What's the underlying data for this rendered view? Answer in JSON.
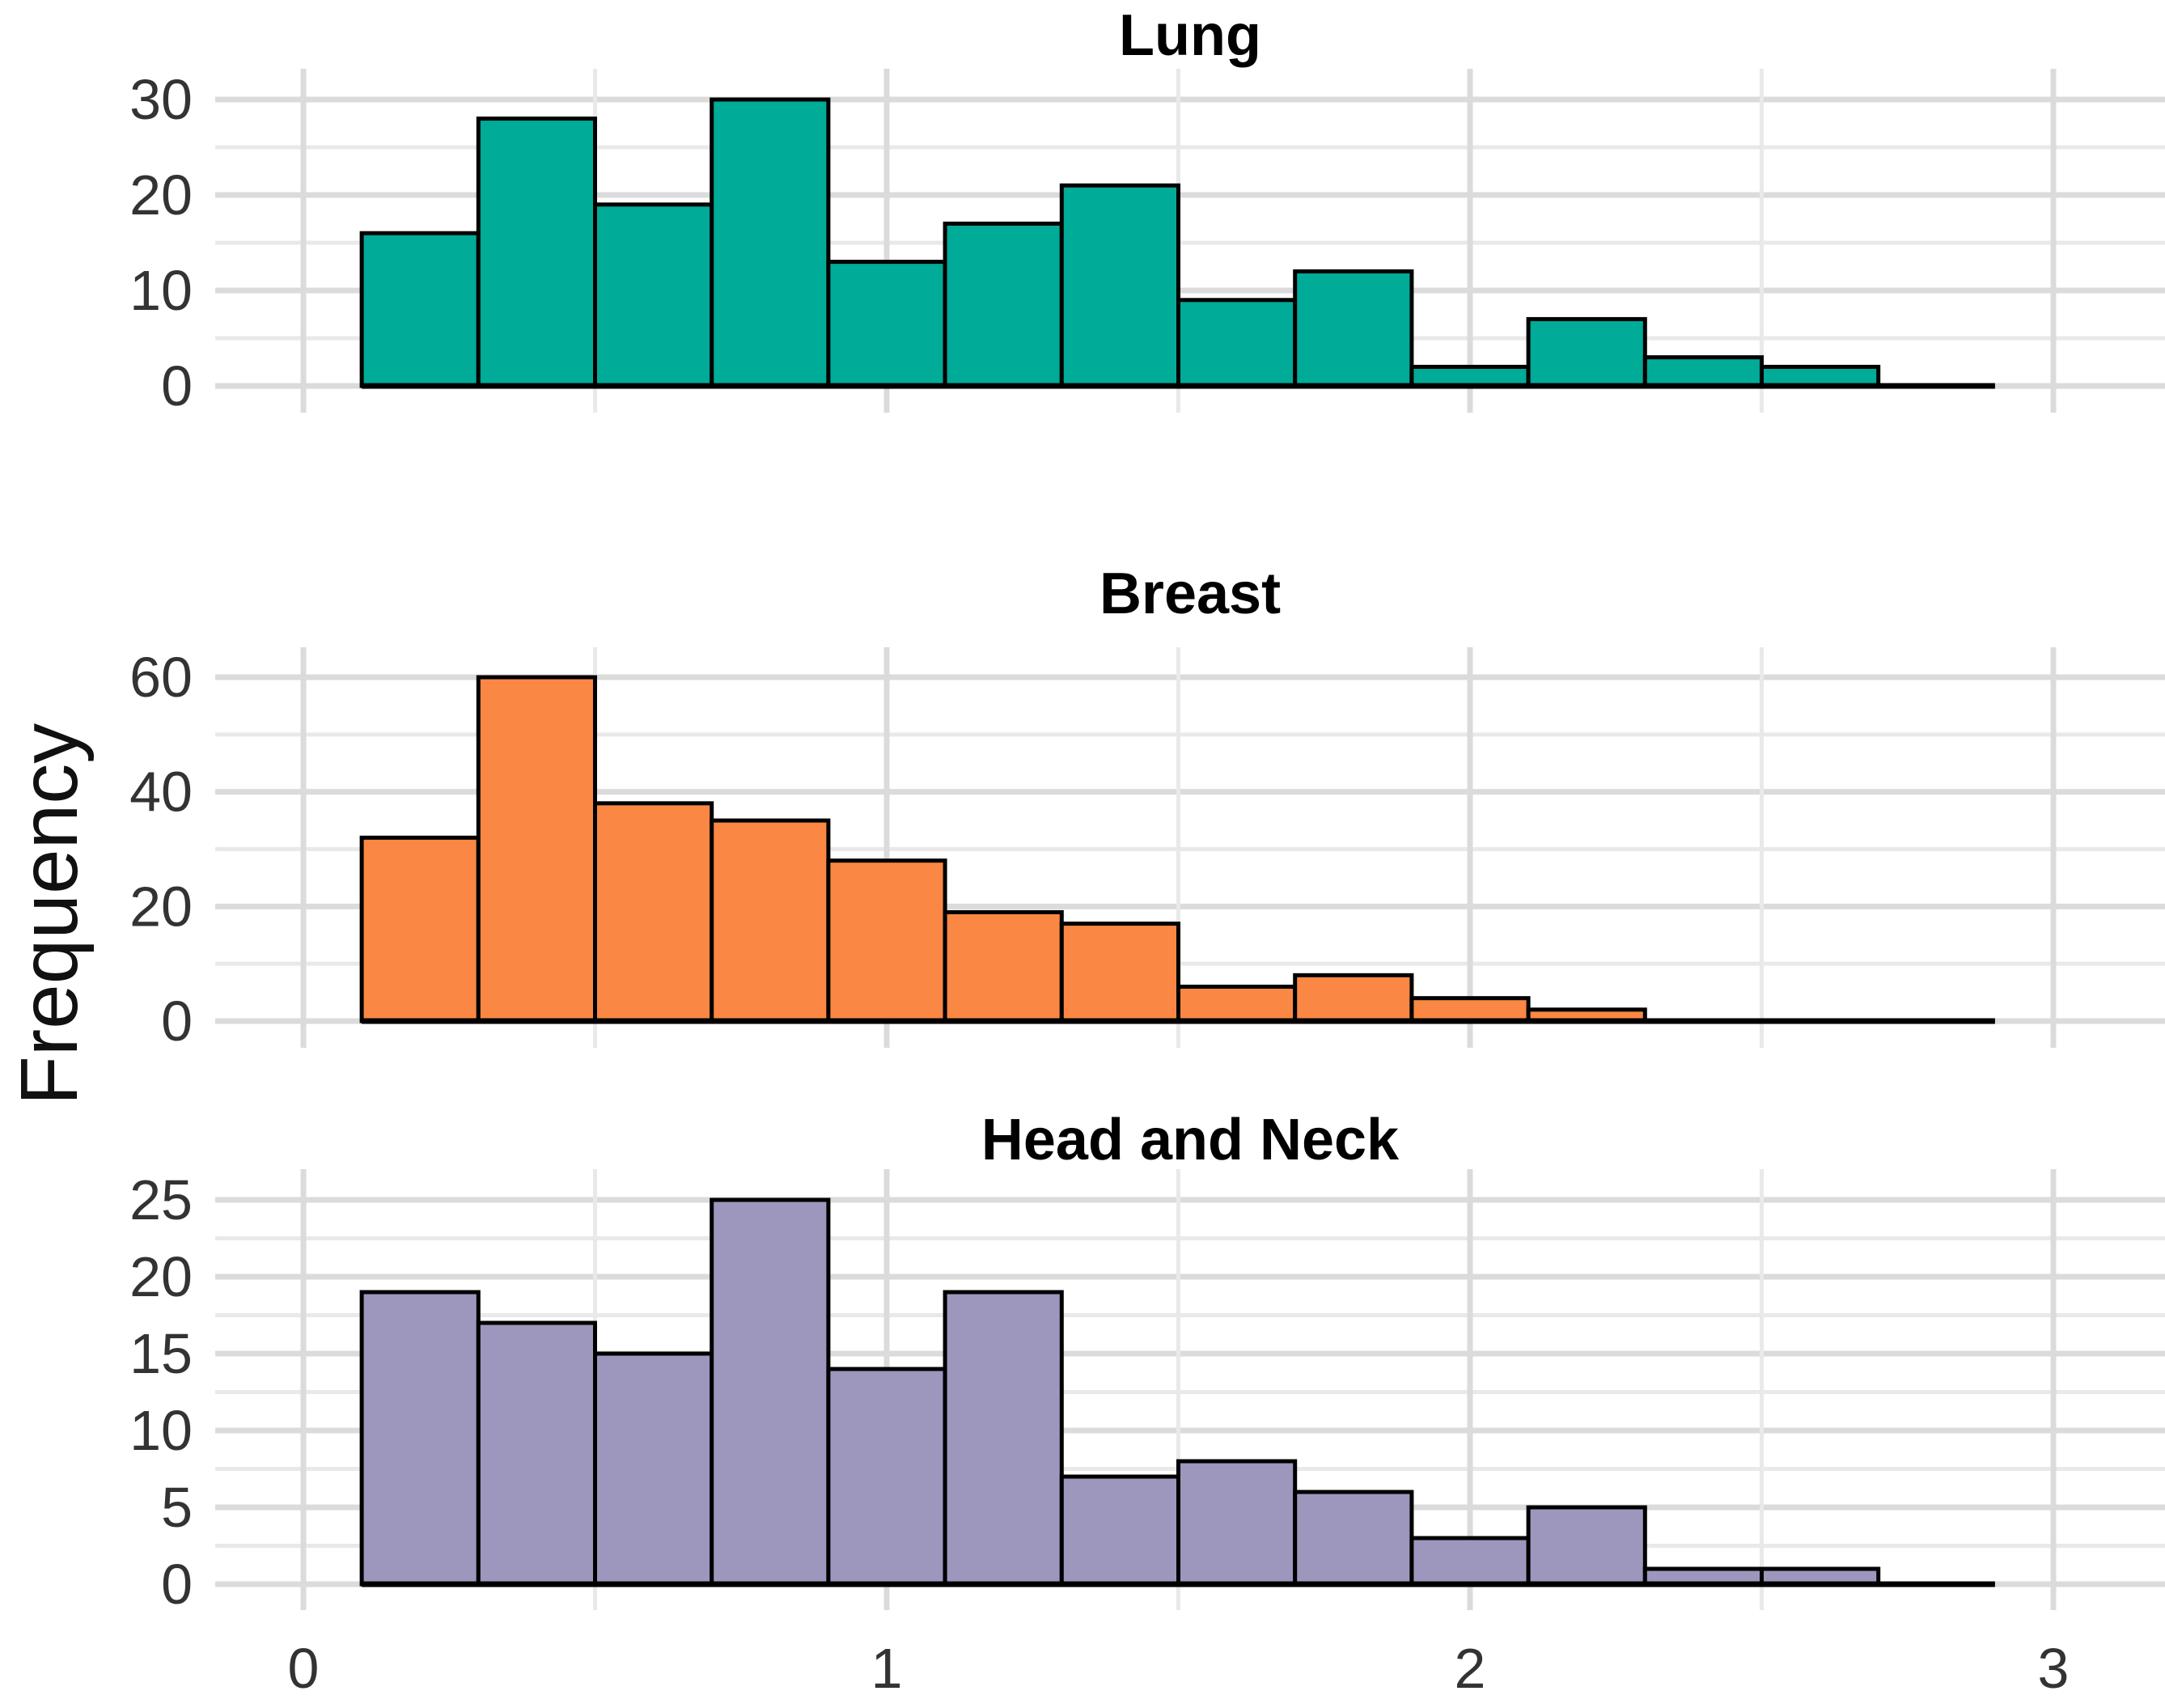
{
  "figure": {
    "ylabel": "Frequency",
    "x_ticks": [
      "0",
      "1",
      "2",
      "3"
    ],
    "background_color": "#FFFFFF",
    "grid_major_color": "#DBDBDB",
    "grid_minor_color": "#E9E9E9",
    "bar_outline_color": "#000000",
    "text_color": "#333333"
  },
  "chart_data": [
    {
      "type": "bar",
      "subtype": "histogram",
      "title": "Lung",
      "color": "#00AB98",
      "bin_start": 0.1,
      "bin_width": 0.2,
      "values": [
        16,
        28,
        19,
        30,
        13,
        17,
        21,
        9,
        12,
        2,
        7,
        3,
        2
      ],
      "y_ticks": [
        0,
        10,
        20,
        30
      ],
      "y_minor_step": 5,
      "ylim": [
        0,
        33
      ],
      "xlim": [
        0,
        3
      ],
      "baseline_end": 2.9,
      "grid": "on",
      "legend": "none"
    },
    {
      "type": "bar",
      "subtype": "histogram",
      "title": "Breast",
      "color": "#FA8743",
      "bin_start": 0.1,
      "bin_width": 0.2,
      "values": [
        32,
        60,
        38,
        35,
        28,
        19,
        17,
        6,
        8,
        4,
        2
      ],
      "y_ticks": [
        0,
        20,
        40,
        60
      ],
      "y_minor_step": 10,
      "ylim": [
        0,
        65
      ],
      "xlim": [
        0,
        3
      ],
      "baseline_end": 2.9,
      "grid": "on",
      "legend": "none"
    },
    {
      "type": "bar",
      "subtype": "histogram",
      "title": "Head and Neck",
      "color": "#9D97BD",
      "bin_start": 0.1,
      "bin_width": 0.2,
      "values": [
        19,
        17,
        15,
        25,
        14,
        19,
        7,
        8,
        6,
        3,
        5,
        1,
        1
      ],
      "y_ticks": [
        0,
        5,
        10,
        15,
        20,
        25
      ],
      "y_minor_step": 2.5,
      "ylim": [
        0,
        27
      ],
      "xlim": [
        0,
        3
      ],
      "baseline_end": 2.9,
      "grid": "on",
      "legend": "none"
    }
  ]
}
